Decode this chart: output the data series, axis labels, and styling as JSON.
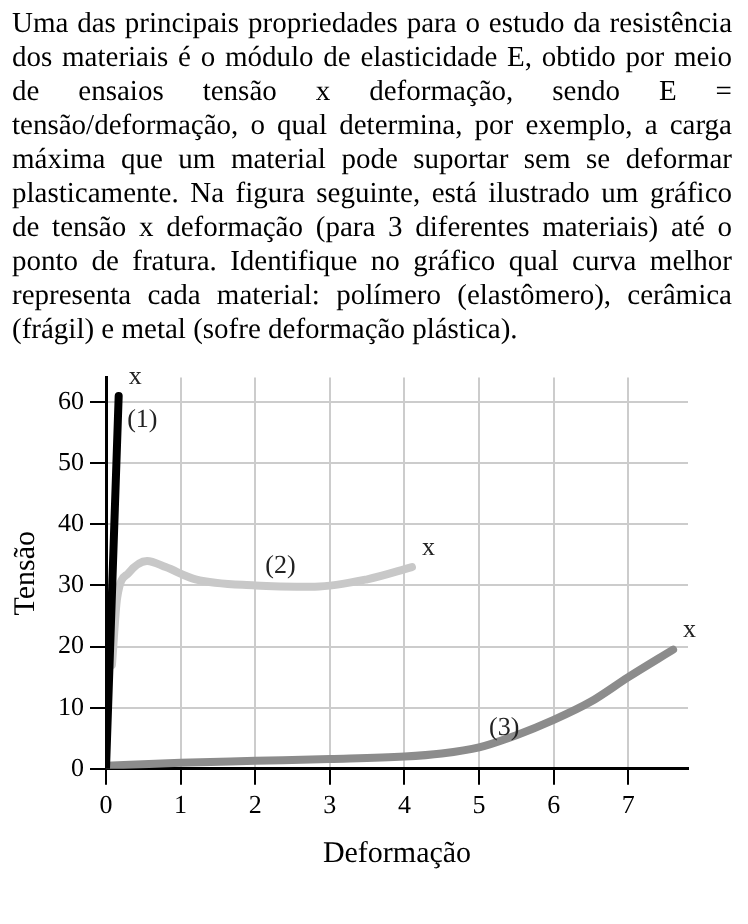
{
  "chart_data": {
    "type": "line",
    "title": "Uma das principais propriedades para o estudo da resistência dos materiais é o módulo de elasticidade E, obtido por meio de ensaios tensão x deformação, sendo E = tensão/deformação, o qual determina, por exemplo, a carga máxima que um material pode suportar sem se deformar plasticamente. Na figura seguinte, está ilustrado um gráfico de tensão x deformação (para 3 diferentes materiais) até o ponto de fratura. Identifique no gráfico qual curva melhor representa cada material: polímero (elastômero), cerâmica (frágil) e metal (sofre deformação plástica).",
    "xlabel": "Deformação",
    "ylabel": "Tensão",
    "xlim": [
      0,
      7.8
    ],
    "ylim": [
      0,
      64
    ],
    "xticks": [
      0,
      1,
      2,
      3,
      4,
      5,
      6,
      7
    ],
    "yticks": [
      0,
      10,
      20,
      30,
      40,
      50,
      60
    ],
    "grid": true,
    "legend": false,
    "marker": "none",
    "line_style": "solid",
    "series": [
      {
        "color": "#000000",
        "x": [
          0,
          0.17
        ],
        "values": [
          0,
          61
        ]
      },
      {
        "color": "#c8c8c8",
        "x": [
          0.08,
          0.15,
          0.3,
          0.55,
          0.8,
          1.2,
          2,
          2.8,
          3.5,
          4.1
        ],
        "values": [
          17,
          28,
          32,
          34,
          33,
          31,
          30,
          29.8,
          31,
          33
        ]
      },
      {
        "color": "#8c8c8c",
        "x": [
          0,
          1,
          2,
          3,
          4,
          4.5,
          5,
          5.5,
          6,
          6.5,
          7,
          7.6
        ],
        "values": [
          0.5,
          1,
          1.3,
          1.6,
          2,
          2.5,
          3.5,
          5.5,
          8,
          11,
          15,
          19.5
        ]
      }
    ],
    "annotations": [
      {
        "text": "x",
        "x": 0.17,
        "y": 61
      },
      {
        "text": "(1)",
        "x": 0.15,
        "y": 54
      },
      {
        "text": "x",
        "x": 4.1,
        "y": 33
      },
      {
        "text": "(2)",
        "x": 2,
        "y": 30
      },
      {
        "text": "x",
        "x": 7.6,
        "y": 19.5
      },
      {
        "text": "(3)",
        "x": 5,
        "y": 3.5
      }
    ]
  }
}
